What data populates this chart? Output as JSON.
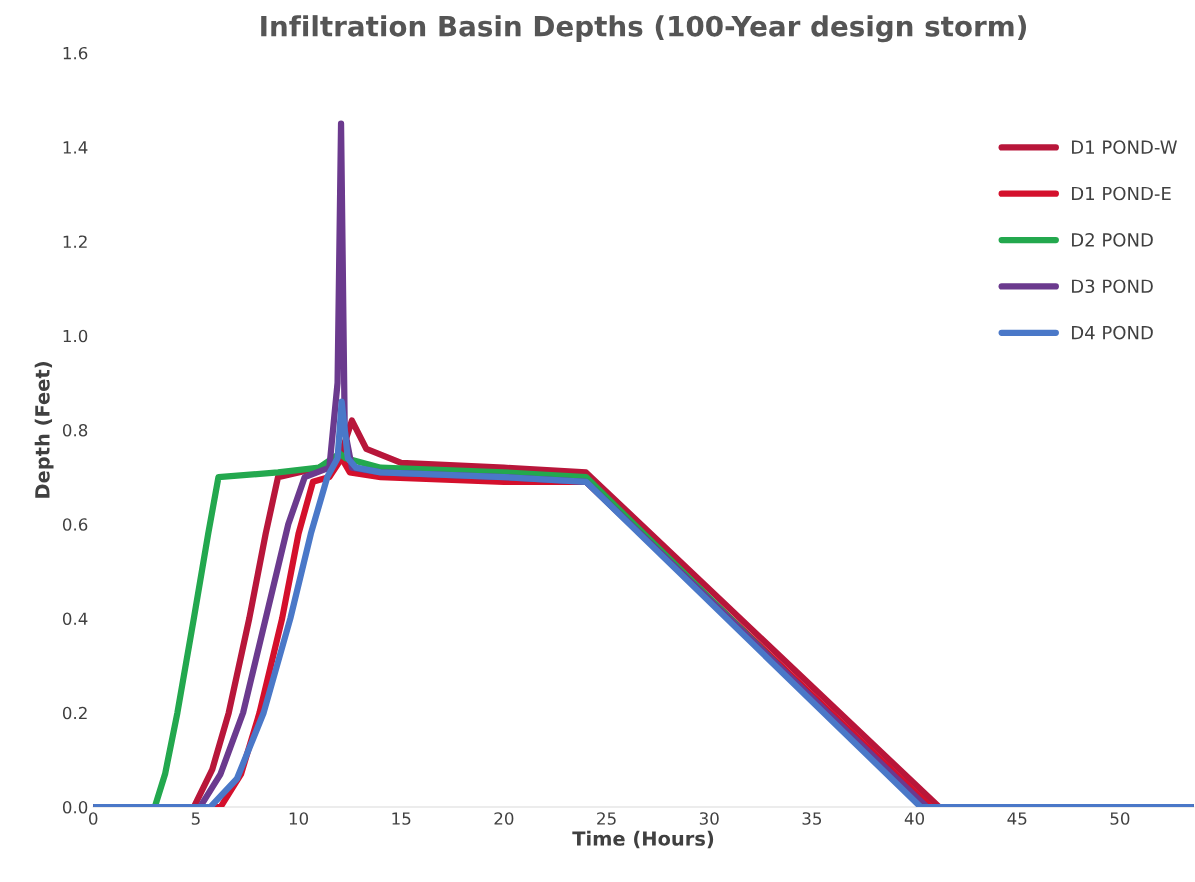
{
  "chart_data": {
    "type": "line",
    "title": "Infiltration Basin Depths (100-Year design storm)",
    "xlabel": "Time (Hours)",
    "ylabel": "Depth (Feet)",
    "xlim": [
      0,
      53.6
    ],
    "xticks": [
      0,
      5,
      10,
      15,
      20,
      25,
      30,
      35,
      40,
      45,
      50
    ],
    "ylim": [
      0,
      1.6
    ],
    "yticks": [
      {
        "value": 0,
        "label": "0.0"
      },
      {
        "value": 0.2,
        "label": "0.2"
      },
      {
        "value": 0.4,
        "label": "0.4"
      },
      {
        "value": 0.6,
        "label": "0.6"
      },
      {
        "value": 0.8,
        "label": "0.8"
      },
      {
        "value": 1.0,
        "label": "1.0"
      },
      {
        "value": 1.2,
        "label": "1.2"
      },
      {
        "value": 1.4,
        "label": "1.4"
      },
      {
        "value": 1.6,
        "label": "1.6"
      }
    ],
    "grid": false,
    "legend": "right",
    "marker": "none",
    "line_style": "solid",
    "series": [
      {
        "name": "D1 POND-W",
        "color": "#b8163a",
        "x": [
          0,
          4.9,
          5.8,
          6.6,
          7.6,
          8.4,
          9.0,
          10,
          11,
          12,
          12.6,
          13.3,
          15,
          20,
          24,
          41.2,
          53.6
        ],
        "values": [
          0,
          0,
          0.08,
          0.2,
          0.4,
          0.58,
          0.7,
          0.71,
          0.72,
          0.74,
          0.82,
          0.76,
          0.73,
          0.72,
          0.71,
          0,
          0
        ]
      },
      {
        "name": "D1 POND-E",
        "color": "#d4102c",
        "x": [
          0,
          6.2,
          7.2,
          8.1,
          9.2,
          10.0,
          10.7,
          11.5,
          12.1,
          12.5,
          14,
          20,
          24,
          40.8,
          53.6
        ],
        "values": [
          0,
          0,
          0.07,
          0.2,
          0.4,
          0.58,
          0.69,
          0.7,
          0.74,
          0.71,
          0.7,
          0.69,
          0.69,
          0,
          0
        ]
      },
      {
        "name": "D2 POND",
        "color": "#23a84e",
        "x": [
          0,
          3.0,
          3.5,
          4.1,
          4.9,
          5.6,
          6.1,
          9,
          11,
          12,
          12.3,
          14,
          20,
          24,
          40.4,
          53.6
        ],
        "values": [
          0,
          0,
          0.07,
          0.2,
          0.4,
          0.58,
          0.7,
          0.71,
          0.72,
          0.75,
          0.74,
          0.72,
          0.71,
          0.7,
          0,
          0
        ]
      },
      {
        "name": "D3 POND",
        "color": "#6b3a8e",
        "x": [
          0,
          5.2,
          6.2,
          7.3,
          8.4,
          9.5,
          10.3,
          11.5,
          11.9,
          12.07,
          12.25,
          12.6,
          14,
          20,
          24,
          40.6,
          53.6
        ],
        "values": [
          0,
          0,
          0.07,
          0.2,
          0.4,
          0.6,
          0.7,
          0.72,
          0.9,
          1.45,
          0.8,
          0.72,
          0.71,
          0.7,
          0.69,
          0,
          0
        ]
      },
      {
        "name": "D4 POND",
        "color": "#4a78c8",
        "x": [
          0,
          5.7,
          7.0,
          8.3,
          9.6,
          10.6,
          11.4,
          11.9,
          12.1,
          12.4,
          12.8,
          14,
          20,
          24,
          40.3,
          53.6
        ],
        "values": [
          0,
          0,
          0.06,
          0.2,
          0.4,
          0.58,
          0.7,
          0.74,
          0.86,
          0.74,
          0.72,
          0.71,
          0.7,
          0.69,
          0,
          0
        ]
      }
    ]
  }
}
